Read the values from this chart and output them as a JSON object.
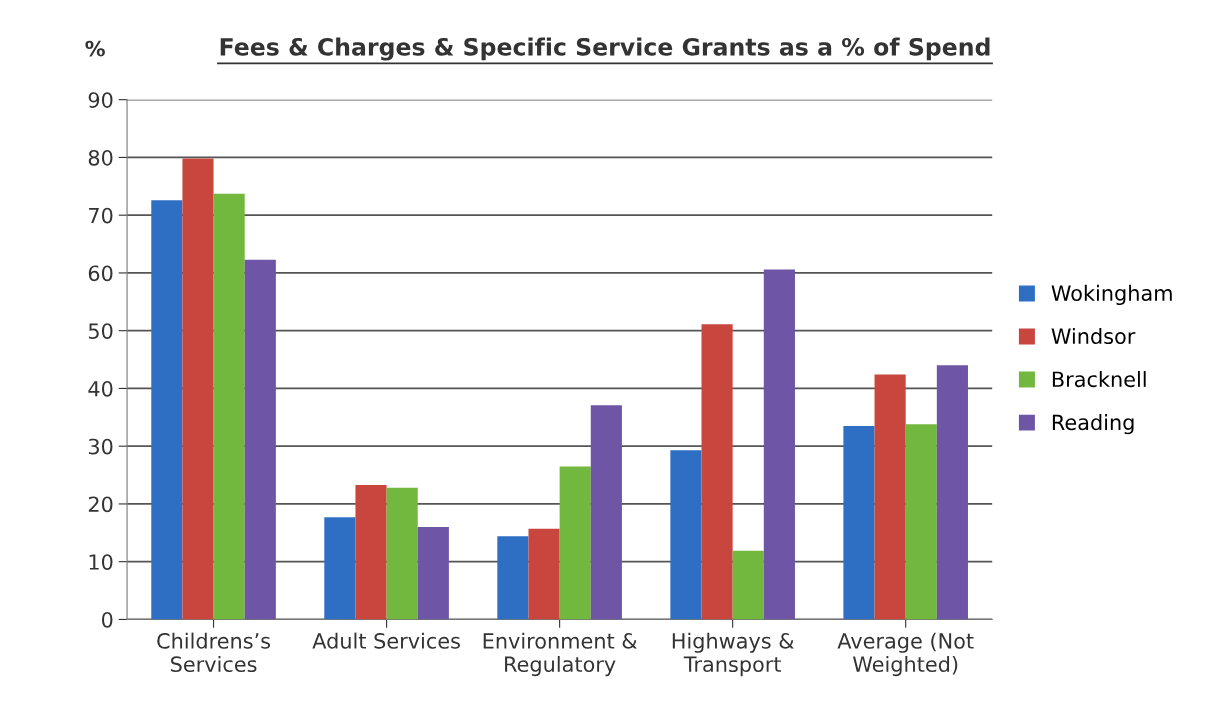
{
  "chart_data": {
    "type": "bar",
    "title": "Fees & Charges & Specific Service Grants as a % of Spend",
    "ylabel": "%",
    "categories": [
      "Childrens’s Services",
      "Adult Services",
      "Environment & Regulatory",
      "Highways & Transport",
      "Average (Not Weighted)"
    ],
    "series": [
      {
        "name": "Wokingham",
        "color": "#2e6fc4",
        "values": [
          72.6,
          17.7,
          14.4,
          29.3,
          33.5
        ]
      },
      {
        "name": "Windsor",
        "color": "#c9463f",
        "values": [
          79.8,
          23.3,
          15.7,
          51.1,
          42.4
        ]
      },
      {
        "name": "Bracknell",
        "color": "#72b73e",
        "values": [
          73.7,
          22.8,
          26.5,
          11.9,
          33.8
        ]
      },
      {
        "name": "Reading",
        "color": "#6e55a6",
        "values": [
          62.3,
          16.0,
          37.1,
          60.6,
          44.0
        ]
      }
    ],
    "ylim": [
      0,
      90
    ],
    "yticks": [
      0,
      10,
      20,
      30,
      40,
      50,
      60,
      70,
      80,
      90
    ],
    "grid": "y",
    "legend": "right"
  }
}
